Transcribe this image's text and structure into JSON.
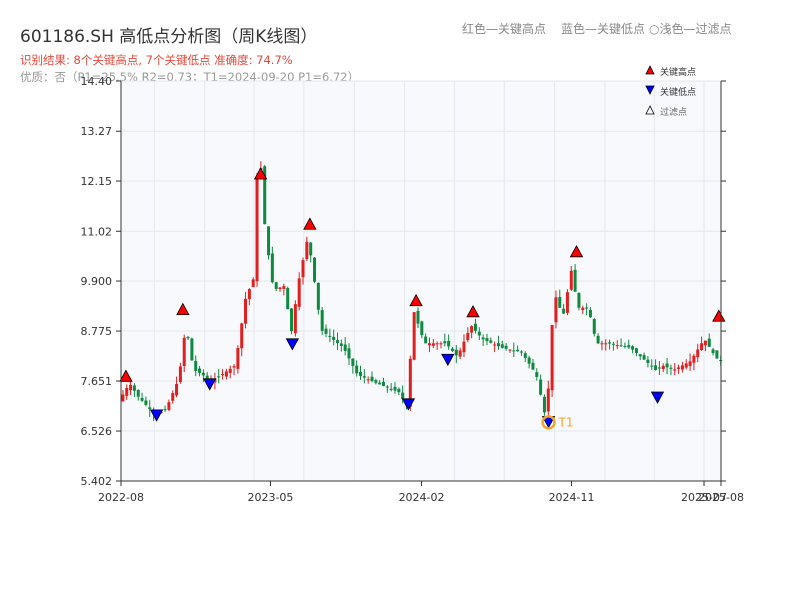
{
  "header": {
    "title": "601186.SH 高低点分析图（周K线图）",
    "legend_red": "红色—关键高点",
    "legend_blue": "蓝色—关键低点",
    "legend_filtered": "○浅色—过滤点",
    "result_line": "识别结果: 8个关键高点, 7个关键低点   准确度: 74.7%",
    "quality_line": "优质：否（P1=25.5%  R2=0.73；T1=2024-09-20 P1=6.72）"
  },
  "chart_data": {
    "type": "candlestick",
    "title": "601186.SH 高低点分析图（周K线图）",
    "xlabel": "",
    "ylabel": "",
    "ylim": [
      5.402,
      14.4
    ],
    "y_ticks": [
      "5.402",
      "6.526",
      "7.651",
      "8.775",
      "9.900",
      "11.02",
      "12.15",
      "13.27",
      "14.40"
    ],
    "y_tick_values": [
      5.402,
      6.526,
      7.651,
      8.775,
      9.9,
      11.02,
      12.15,
      13.27,
      14.4
    ],
    "x_tick_labels": [
      "2022-08",
      "2023-05",
      "2024-02",
      "2024-11",
      "2025-07",
      "2025-08"
    ],
    "x_tick_dates": [
      "2022-08-01",
      "2023-05-01",
      "2024-02-01",
      "2024-11-01",
      "2025-07-01",
      "2025-08-01"
    ],
    "x_range": [
      "2022-08-01",
      "2025-08-01"
    ],
    "grid": true,
    "legend_placement": "top-right",
    "legend": [
      "关键高点",
      "关键低点",
      "过滤点"
    ],
    "colors": {
      "up": "#e01f1f",
      "down": "#0e8a3e",
      "high_marker": "#ff0000",
      "low_marker": "#0000ff",
      "t1_marker": "#f5a623"
    },
    "path": [
      [
        "2022-08-01",
        7.2
      ],
      [
        "2022-08-20",
        7.6
      ],
      [
        "2022-09-05",
        7.3
      ],
      [
        "2022-10-05",
        6.9
      ],
      [
        "2022-10-25",
        7.0
      ],
      [
        "2022-11-18",
        7.7
      ],
      [
        "2022-12-01",
        8.9
      ],
      [
        "2022-12-15",
        7.9
      ],
      [
        "2023-01-01",
        7.8
      ],
      [
        "2023-01-10",
        7.6
      ],
      [
        "2023-02-05",
        7.8
      ],
      [
        "2023-03-01",
        8.0
      ],
      [
        "2023-03-20",
        9.5
      ],
      [
        "2023-04-05",
        10.0
      ],
      [
        "2023-04-10",
        12.2
      ],
      [
        "2023-04-15",
        12.8
      ],
      [
        "2023-04-25",
        11.0
      ],
      [
        "2023-05-10",
        9.7
      ],
      [
        "2023-06-01",
        9.8
      ],
      [
        "2023-06-10",
        8.6
      ],
      [
        "2023-06-25",
        9.9
      ],
      [
        "2023-07-12",
        10.9
      ],
      [
        "2023-07-25",
        9.8
      ],
      [
        "2023-08-05",
        8.8
      ],
      [
        "2023-09-15",
        8.4
      ],
      [
        "2023-10-10",
        7.8
      ],
      [
        "2023-11-15",
        7.6
      ],
      [
        "2023-12-25",
        7.4
      ],
      [
        "2024-01-08",
        7.1
      ],
      [
        "2024-01-22",
        9.2
      ],
      [
        "2024-02-10",
        8.5
      ],
      [
        "2024-03-20",
        8.5
      ],
      [
        "2024-04-10",
        8.2
      ],
      [
        "2024-05-05",
        8.9
      ],
      [
        "2024-05-25",
        8.6
      ],
      [
        "2024-06-30",
        8.4
      ],
      [
        "2024-08-05",
        8.3
      ],
      [
        "2024-09-01",
        7.8
      ],
      [
        "2024-09-20",
        6.72
      ],
      [
        "2024-09-27",
        8.5
      ],
      [
        "2024-10-05",
        9.6
      ],
      [
        "2024-10-20",
        9.1
      ],
      [
        "2024-11-05",
        10.2
      ],
      [
        "2024-11-15",
        9.3
      ],
      [
        "2024-12-05",
        9.3
      ],
      [
        "2024-12-20",
        8.5
      ],
      [
        "2025-01-10",
        8.5
      ],
      [
        "2025-02-20",
        8.4
      ],
      [
        "2025-03-20",
        8.1
      ],
      [
        "2025-04-07",
        7.9
      ],
      [
        "2025-04-20",
        8.0
      ],
      [
        "2025-05-10",
        7.9
      ],
      [
        "2025-06-10",
        8.1
      ],
      [
        "2025-07-05",
        8.6
      ],
      [
        "2025-07-25",
        8.2
      ],
      [
        "2025-08-01",
        8.1
      ]
    ],
    "key_highs": [
      {
        "date": "2022-08-10",
        "value": 7.6
      },
      {
        "date": "2022-11-22",
        "value": 9.1
      },
      {
        "date": "2023-04-13",
        "value": 12.15
      },
      {
        "date": "2023-07-12",
        "value": 11.02
      },
      {
        "date": "2024-01-22",
        "value": 9.3
      },
      {
        "date": "2024-05-05",
        "value": 9.05
      },
      {
        "date": "2024-11-10",
        "value": 10.4
      },
      {
        "date": "2025-07-28",
        "value": 8.95
      }
    ],
    "key_lows": [
      {
        "date": "2022-10-05",
        "value": 6.8
      },
      {
        "date": "2023-01-10",
        "value": 7.5
      },
      {
        "date": "2023-06-10",
        "value": 8.4
      },
      {
        "date": "2024-01-08",
        "value": 7.05
      },
      {
        "date": "2024-03-20",
        "value": 8.05
      },
      {
        "date": "2024-09-20",
        "value": 6.65
      },
      {
        "date": "2025-04-07",
        "value": 7.2
      }
    ],
    "t1": {
      "date": "2024-09-20",
      "value": 6.72,
      "label": "T1"
    }
  }
}
